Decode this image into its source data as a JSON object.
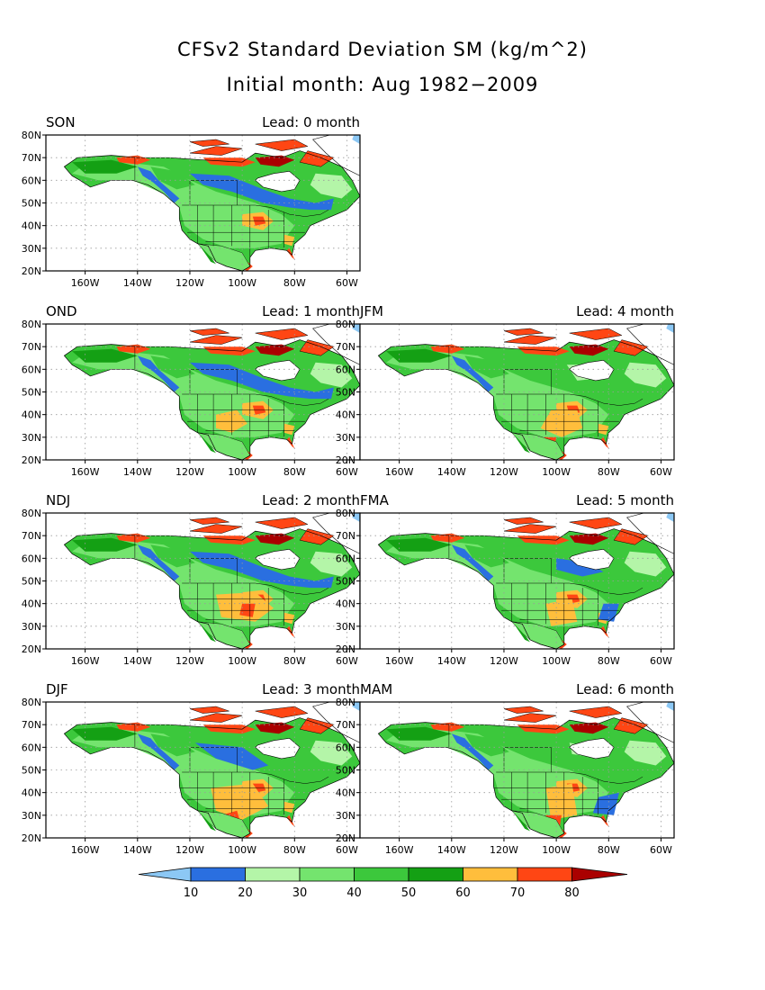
{
  "title": "CFSv2 Standard Deviation SM (kg/m^2)",
  "subtitle": "Initial month: Aug 1982−2009",
  "colors": {
    "ocean": "#ffffff",
    "frame": "#000000",
    "gridline": "#9a9a9a"
  },
  "lat_labels": [
    "80N",
    "70N",
    "60N",
    "50N",
    "40N",
    "30N",
    "20N"
  ],
  "lon_labels": [
    "160W",
    "140W",
    "120W",
    "100W",
    "80W",
    "60W"
  ],
  "panels": [
    {
      "season": "SON",
      "lead": "Lead: 0 month"
    },
    {
      "season": "OND",
      "lead": "Lead: 1 month"
    },
    {
      "season": "JFM",
      "lead": "Lead: 4 month"
    },
    {
      "season": "NDJ",
      "lead": "Lead: 2 month"
    },
    {
      "season": "FMA",
      "lead": "Lead: 5 month"
    },
    {
      "season": "DJF",
      "lead": "Lead: 3 month"
    },
    {
      "season": "MAM",
      "lead": "Lead: 6 month"
    }
  ],
  "colorbar": {
    "labels": [
      "10",
      "20",
      "30",
      "40",
      "50",
      "60",
      "70",
      "80"
    ],
    "colors": [
      "#8cc8f5",
      "#2a6fe0",
      "#b4f5a8",
      "#74e46e",
      "#3cc83c",
      "#14a014",
      "#ffbe3c",
      "#ff4614",
      "#aa0000"
    ]
  }
}
